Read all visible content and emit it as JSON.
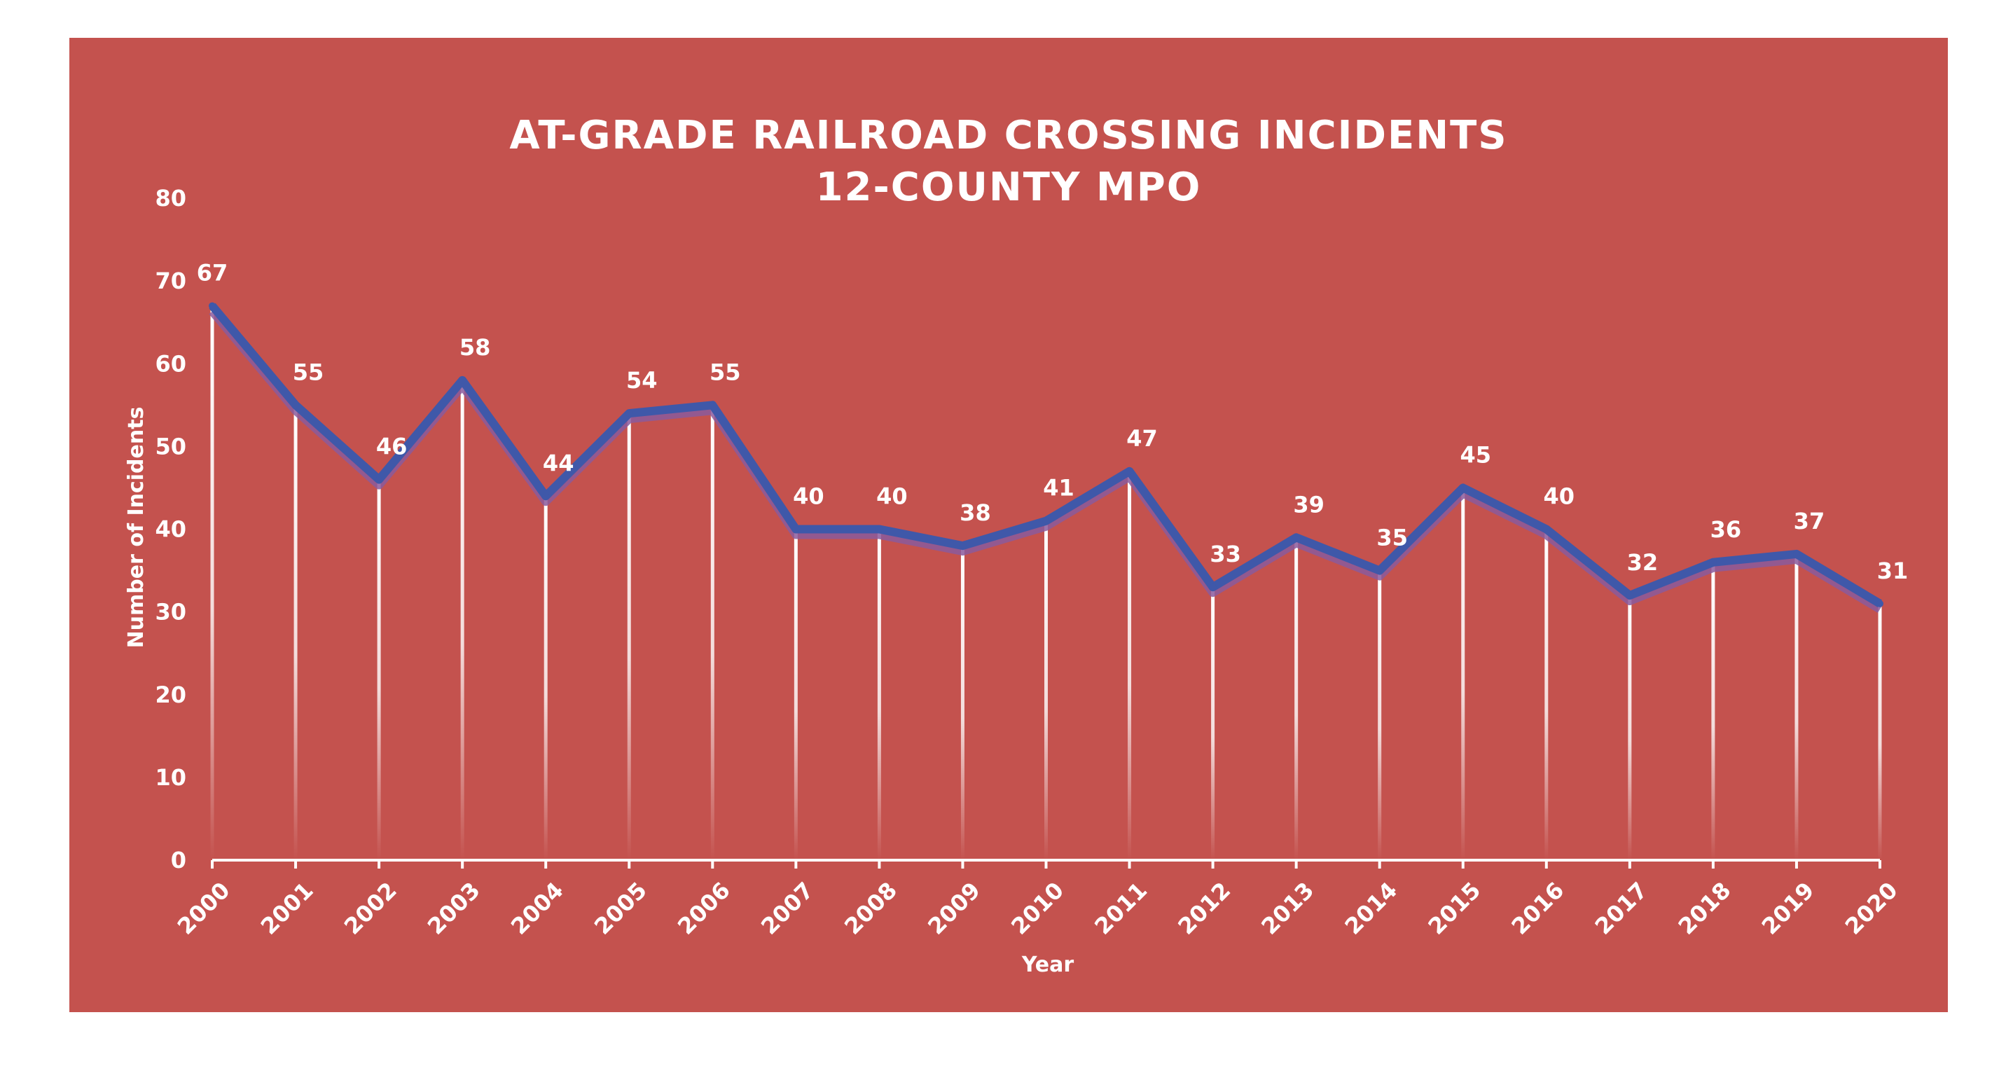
{
  "chart_data": {
    "type": "line",
    "title": "AT-GRADE RAILROAD CROSSING INCIDENTS",
    "subtitle": "12-COUNTY MPO",
    "xlabel": "Year",
    "ylabel": "Number of Incidents",
    "ylim": [
      0,
      80
    ],
    "yticks": [
      0,
      10,
      20,
      30,
      40,
      50,
      60,
      70,
      80
    ],
    "categories": [
      "2000",
      "2001",
      "2002",
      "2003",
      "2004",
      "2005",
      "2006",
      "2007",
      "2008",
      "2009",
      "2010",
      "2011",
      "2012",
      "2013",
      "2014",
      "2015",
      "2016",
      "2017",
      "2018",
      "2019",
      "2020"
    ],
    "values": [
      67,
      55,
      46,
      58,
      44,
      54,
      55,
      40,
      40,
      38,
      41,
      47,
      33,
      39,
      35,
      45,
      40,
      32,
      36,
      37,
      31
    ],
    "data_labels": true,
    "drop_lines": true,
    "grid": false,
    "legend": "none",
    "colors": {
      "background": "#C4524E",
      "line": "#3F58A9",
      "line_shadow": "#8B5A9C",
      "text": "#FFFFFF"
    }
  }
}
